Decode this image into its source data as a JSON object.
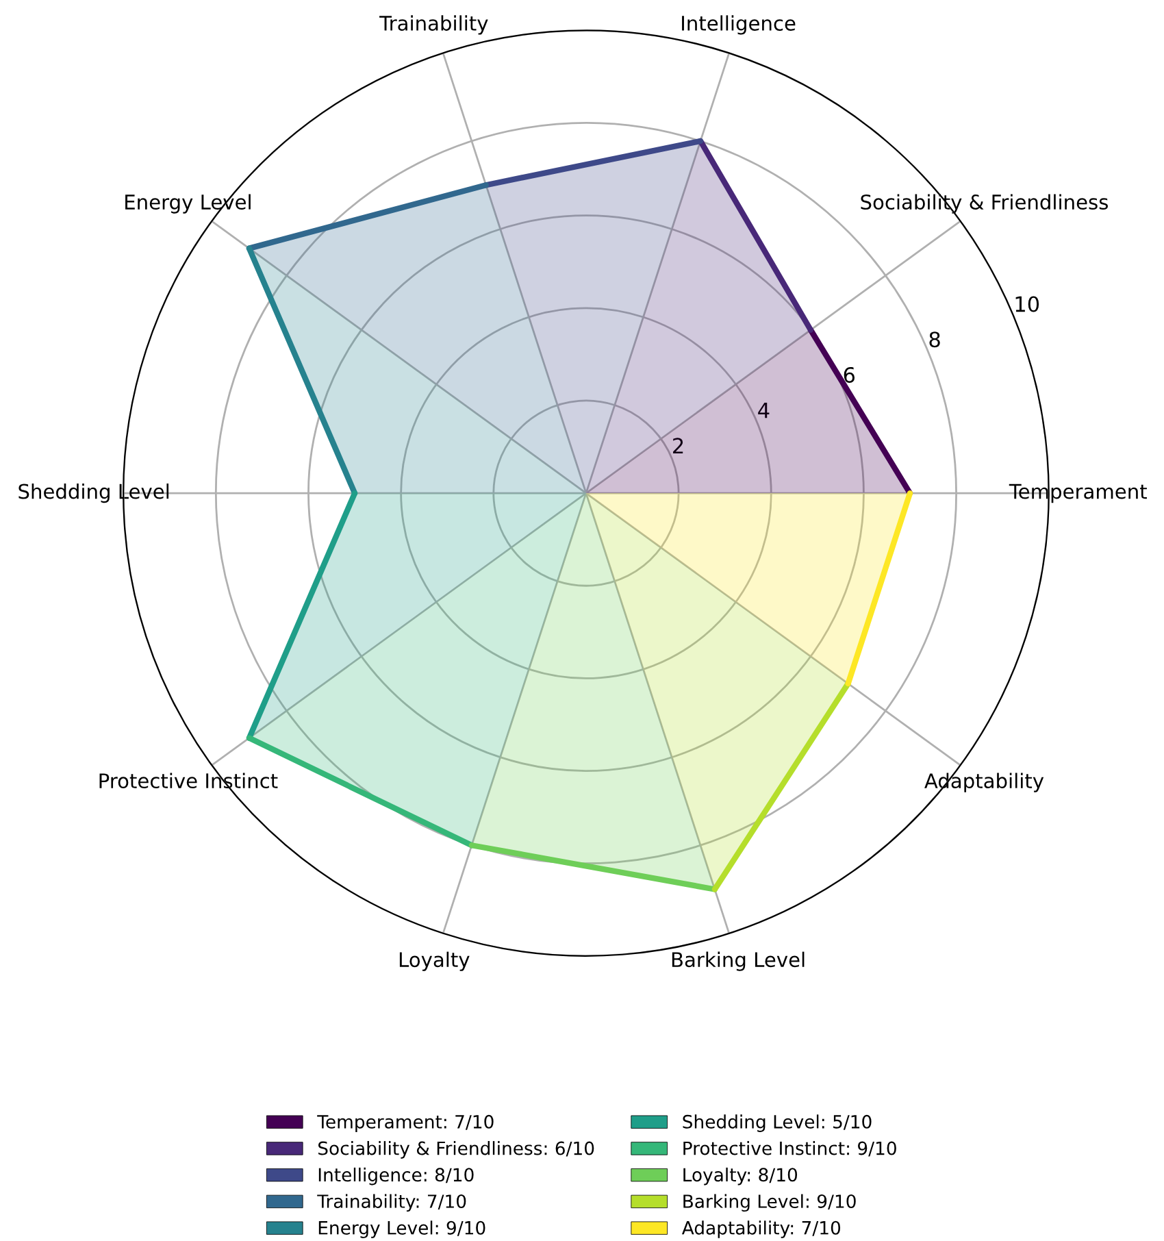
{
  "chart_data": {
    "type": "radar",
    "categories": [
      "Intelligence",
      "Sociability & Friendliness",
      "Temperament",
      "Adaptability",
      "Barking Level",
      "Loyalty",
      "Protective Instinct",
      "Shedding Level",
      "Energy Level",
      "Trainability"
    ],
    "series": [
      {
        "name": "Temperament: 7/10",
        "color": "#440154",
        "values": [
          null,
          6,
          7,
          null,
          null,
          null,
          null,
          null,
          null,
          null
        ]
      },
      {
        "name": "Sociability & Friendliness: 6/10",
        "color": "#482878",
        "values": [
          8,
          6,
          null,
          null,
          null,
          null,
          null,
          null,
          null,
          null
        ]
      },
      {
        "name": "Intelligence: 8/10",
        "color": "#3e4989",
        "values": [
          8,
          null,
          null,
          null,
          null,
          null,
          null,
          null,
          null,
          7
        ]
      },
      {
        "name": "Trainability: 7/10",
        "color": "#31688e",
        "values": [
          null,
          null,
          null,
          null,
          null,
          null,
          null,
          null,
          9,
          7
        ]
      },
      {
        "name": "Energy Level: 9/10",
        "color": "#26828e",
        "values": [
          null,
          null,
          null,
          null,
          null,
          null,
          null,
          5,
          9,
          null
        ]
      },
      {
        "name": "Shedding Level: 5/10",
        "color": "#1f9e89",
        "values": [
          null,
          null,
          null,
          null,
          null,
          null,
          9,
          5,
          null,
          null
        ]
      },
      {
        "name": "Protective Instinct: 9/10",
        "color": "#35b779",
        "values": [
          null,
          null,
          null,
          null,
          null,
          8,
          9,
          null,
          null,
          null
        ]
      },
      {
        "name": "Loyalty: 8/10",
        "color": "#6ece58",
        "values": [
          null,
          null,
          null,
          null,
          9,
          8,
          null,
          null,
          null,
          null
        ]
      },
      {
        "name": "Barking Level: 9/10",
        "color": "#b5de2b",
        "values": [
          null,
          null,
          null,
          7,
          9,
          null,
          null,
          null,
          null,
          null
        ]
      },
      {
        "name": "Adaptability: 7/10",
        "color": "#fde725",
        "values": [
          null,
          null,
          7,
          7,
          null,
          null,
          null,
          null,
          null,
          null
        ]
      }
    ],
    "ylim": [
      0,
      10
    ],
    "yticks": [
      2,
      4,
      6,
      8,
      10
    ],
    "grid": true,
    "legend": "bottom"
  }
}
